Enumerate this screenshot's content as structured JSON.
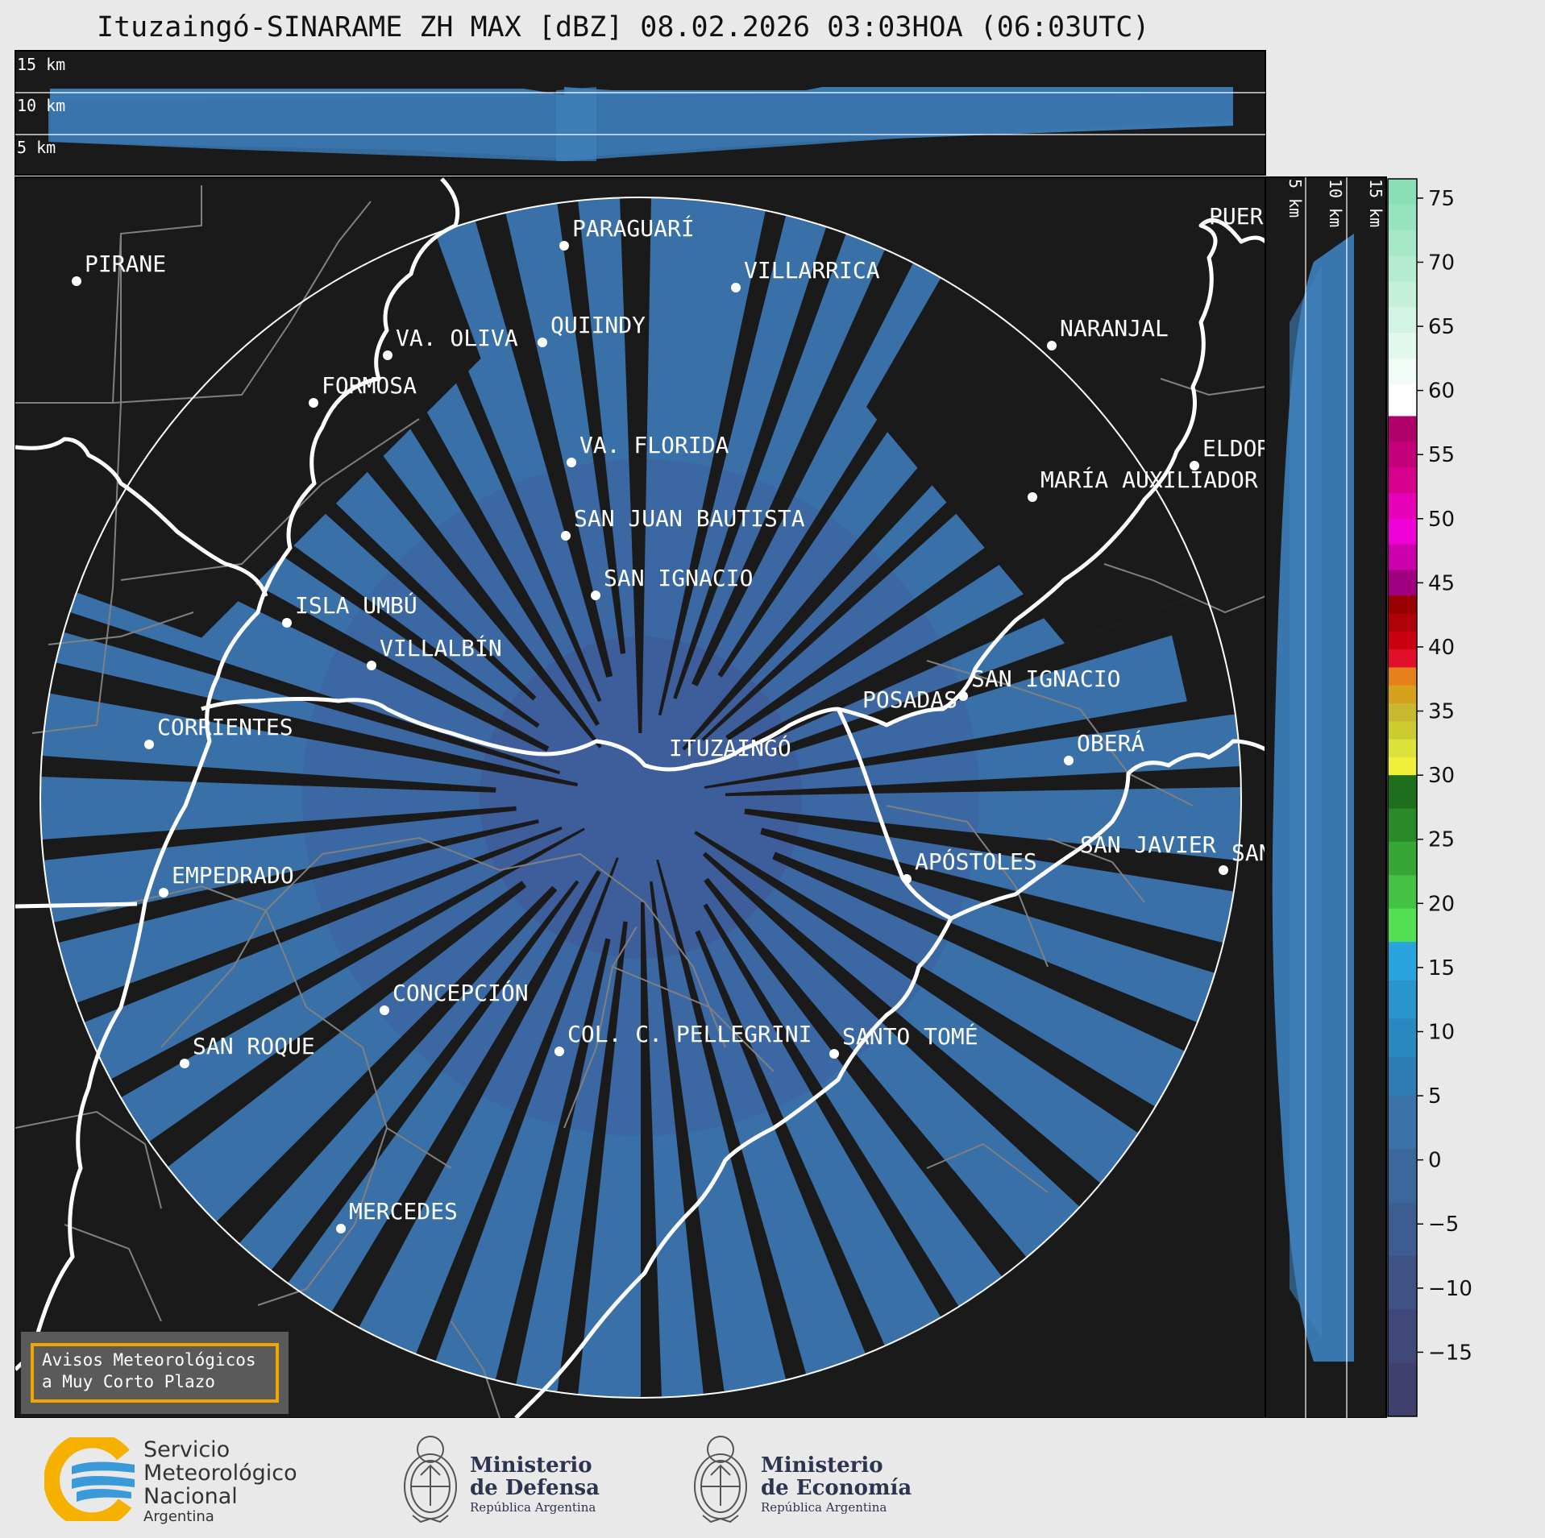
{
  "title": "Ituzaingó-SINARAME ZH MAX [dBZ] 08.02.2026 03:03HOA (06:03UTC)",
  "top_panel": {
    "height_labels": [
      "15 km",
      "10 km",
      "5 km"
    ]
  },
  "side_panel": {
    "height_labels": [
      "5 km",
      "10 km",
      "15 km"
    ]
  },
  "colorbar": {
    "ticks": [
      "75",
      "70",
      "65",
      "60",
      "55",
      "50",
      "45",
      "40",
      "35",
      "30",
      "25",
      "20",
      "15",
      "10",
      "5",
      "0",
      "−5",
      "−10",
      "−15"
    ],
    "range": [
      -20,
      76.5
    ],
    "bands": [
      {
        "from": 60.5,
        "to": 76.5,
        "colors": [
          "#8adfb6",
          "#98e3bf",
          "#a6e7c8",
          "#b4ebd1",
          "#c4f0da",
          "#d3f4e4",
          "#e2f8ed",
          "#f1fcf6"
        ]
      },
      {
        "from": 58,
        "to": 60.5,
        "color": "#ffffff"
      },
      {
        "from": 44,
        "to": 58,
        "colors": [
          "#b0006a",
          "#c3007a",
          "#d6008d",
          "#e600b8",
          "#ee00d7",
          "#cc00aa",
          "#a00080"
        ]
      },
      {
        "from": 30,
        "to": 44,
        "colors": [
          "#9a0000",
          "#b00008",
          "#c80010",
          "#e0102a",
          "#e6801a",
          "#d6a21c",
          "#c8b830",
          "#cccc30",
          "#dde23a",
          "#f0f03a"
        ]
      },
      {
        "from": 17,
        "to": 30,
        "colors": [
          "#1e6e1e",
          "#2a8a2a",
          "#36a636",
          "#44c244",
          "#52e052"
        ]
      },
      {
        "from": 5,
        "to": 17,
        "colors": [
          "#2aa4dc",
          "#2a94cc",
          "#2a88c0",
          "#2e7cb4"
        ]
      },
      {
        "from": -20,
        "to": 5,
        "colors": [
          "#3b72a8",
          "#3c679c",
          "#3d5c90",
          "#3e5284",
          "#3f4878",
          "#40406e"
        ]
      }
    ]
  },
  "map": {
    "cities": [
      {
        "name": "PIRANE"
      },
      {
        "name": "PARAGUARÍ"
      },
      {
        "name": "VILLARRICA"
      },
      {
        "name": "QUIINDY"
      },
      {
        "name": "VA. OLIVA"
      },
      {
        "name": "FORMOSA"
      },
      {
        "name": "NARANJAL"
      },
      {
        "name": "VA. FLORIDA"
      },
      {
        "name": "ELDOR"
      },
      {
        "name": "MARÍA AUXILIADOR"
      },
      {
        "name": "SAN JUAN BAUTISTA"
      },
      {
        "name": "SAN IGNACIO"
      },
      {
        "name": "ISLA UMBÚ"
      },
      {
        "name": "VILLALBÍN"
      },
      {
        "name": "SAN IGNACIO"
      },
      {
        "name": "POSADAS"
      },
      {
        "name": "OBERÁ"
      },
      {
        "name": "CORRIENTES"
      },
      {
        "name": "ITUZAINGÓ"
      },
      {
        "name": "APÓSTOLES"
      },
      {
        "name": "SAN JAVIER"
      },
      {
        "name": "SAN"
      },
      {
        "name": "EMPEDRADO"
      },
      {
        "name": "CONCEPCIÓN"
      },
      {
        "name": "COL. C. PELLEGRINI"
      },
      {
        "name": "SANTO TOMÉ"
      },
      {
        "name": "SAN ROQUE"
      },
      {
        "name": "MERCEDES"
      },
      {
        "name": "PUER"
      }
    ]
  },
  "notice": {
    "line1": "Avisos Meteorológicos",
    "line2": "a Muy Corto Plazo"
  },
  "logos": {
    "smn": {
      "line1": "Servicio",
      "line2": "Meteorológico",
      "line3": "Nacional",
      "line4": "Argentina"
    },
    "defensa": {
      "line1": "Ministerio",
      "line2": "de Defensa",
      "line3": "República Argentina"
    },
    "economia": {
      "line1": "Ministerio",
      "line2": "de Economía",
      "line3": "República Argentina"
    }
  }
}
